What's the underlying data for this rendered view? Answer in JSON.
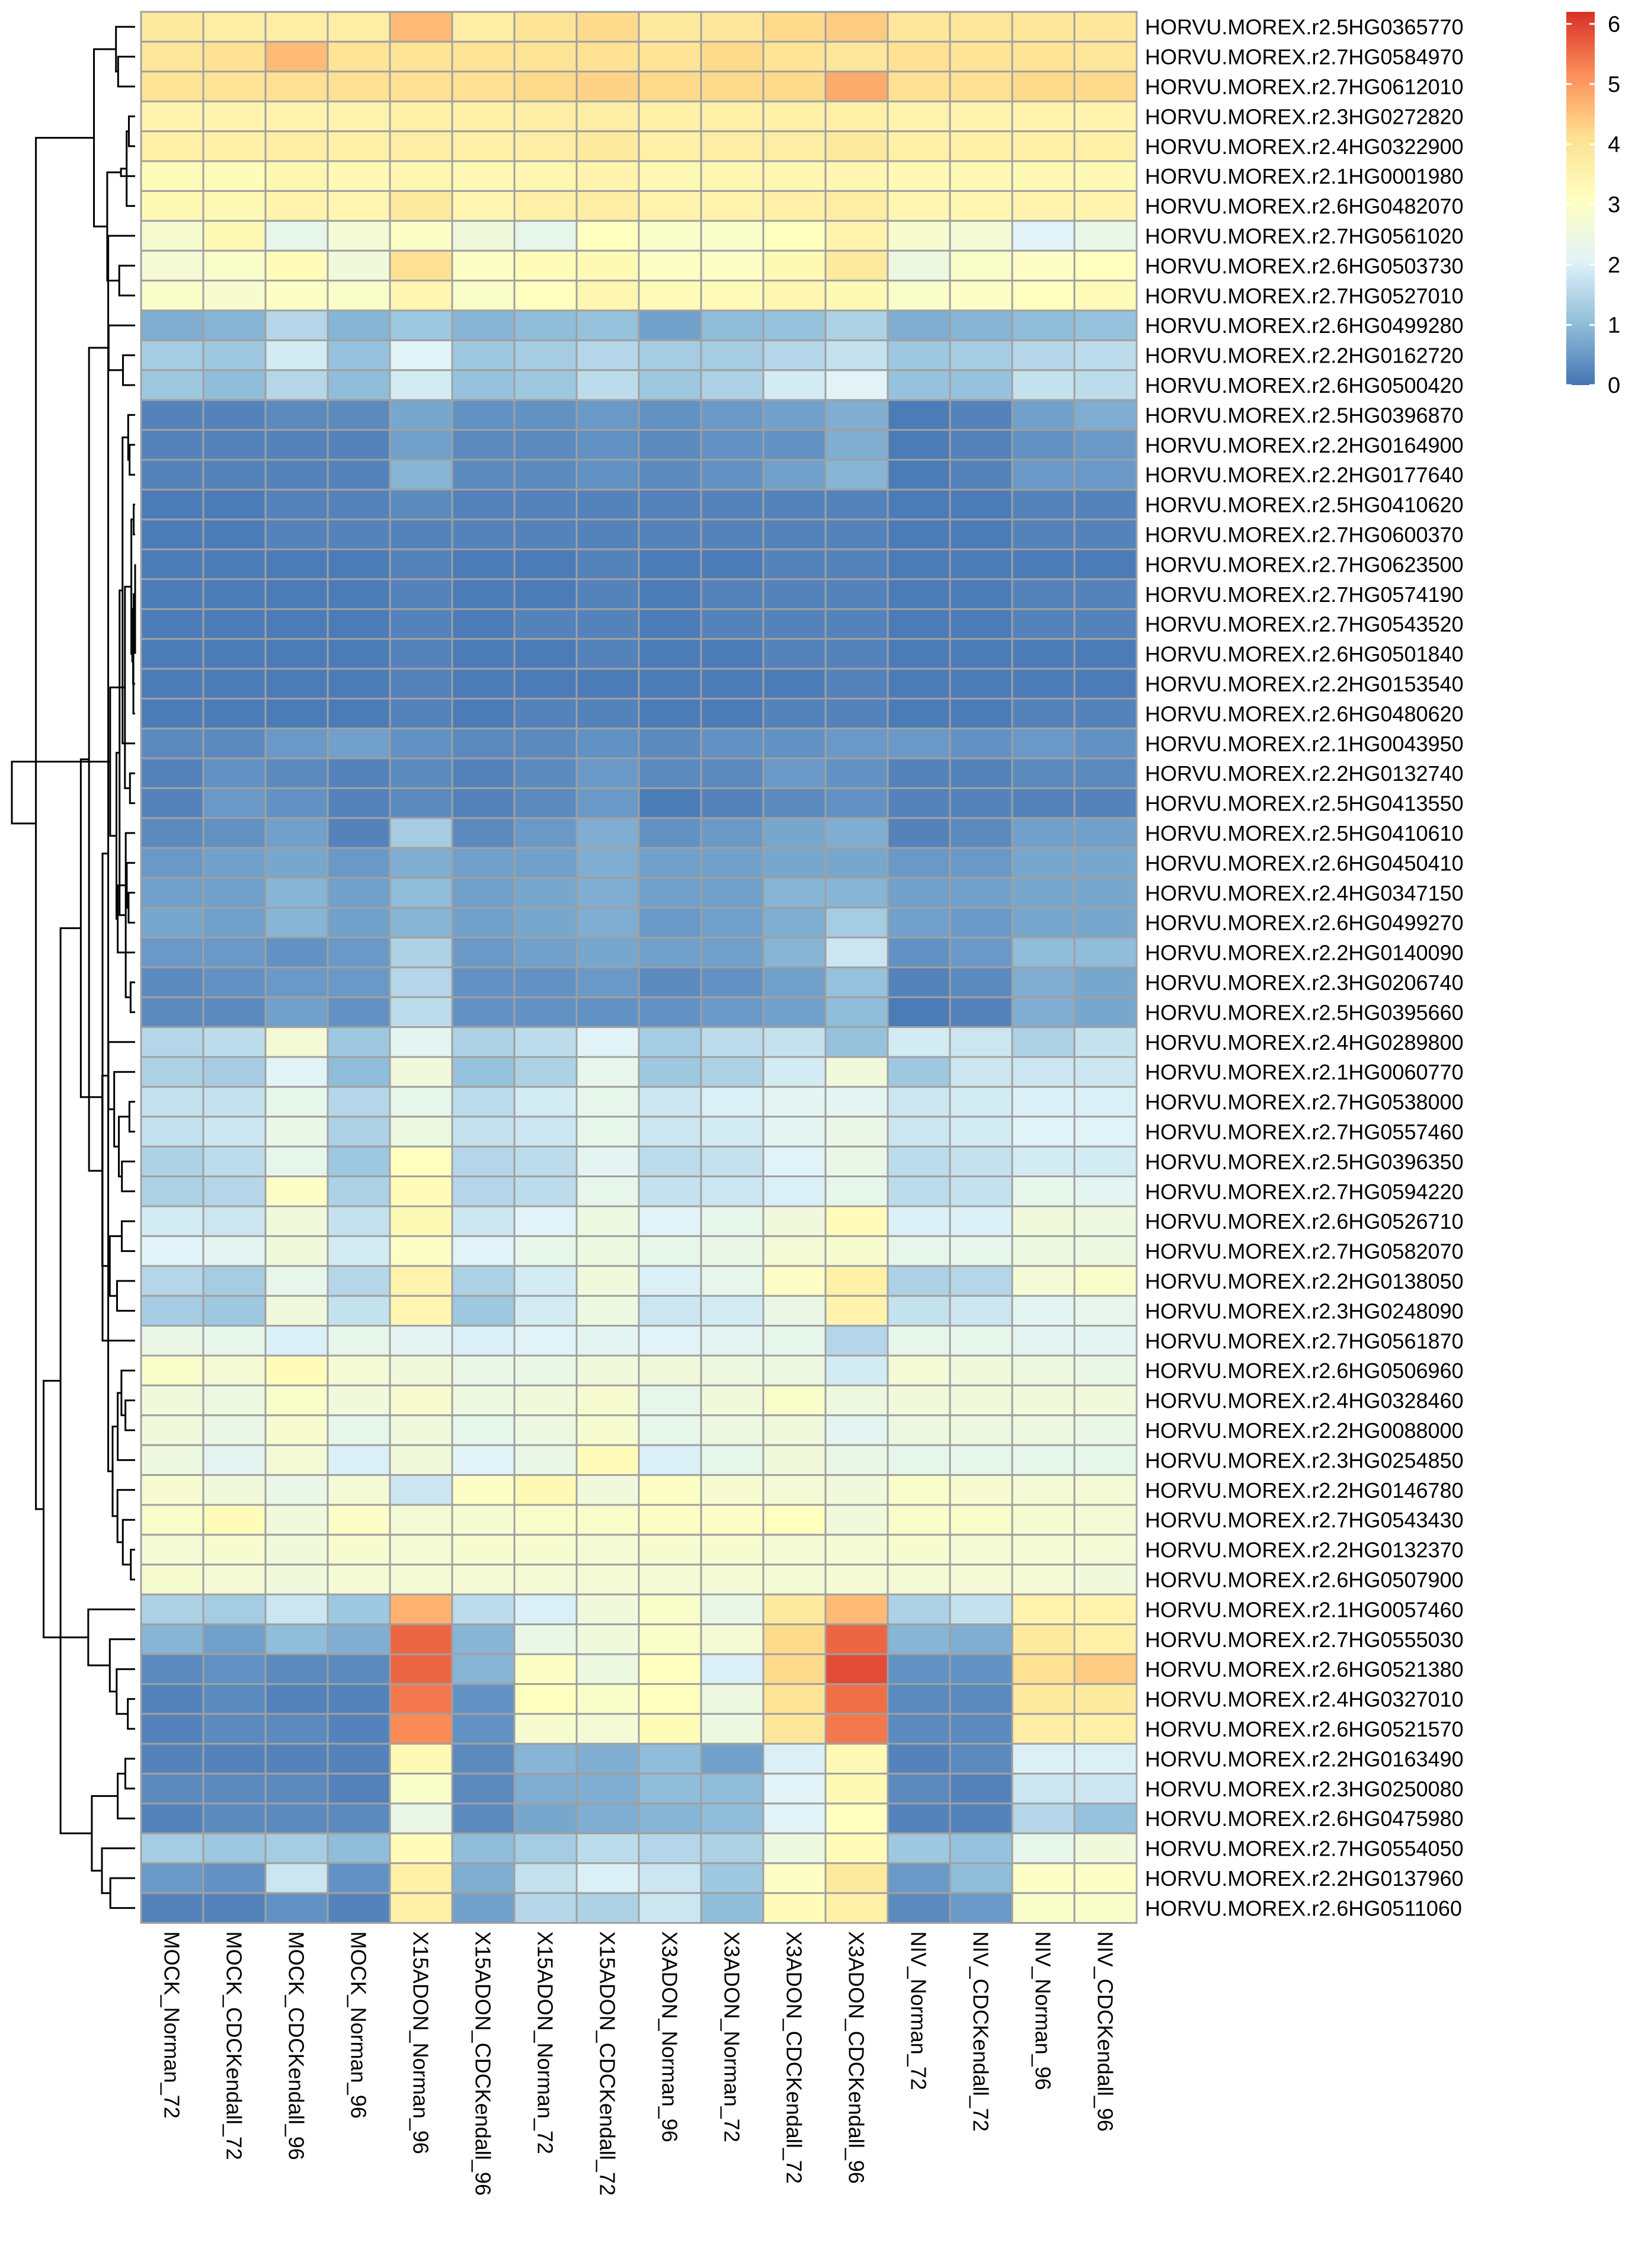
{
  "chart_data": {
    "type": "heatmap",
    "title": "",
    "columns": [
      "MOCK_Norman_72",
      "MOCK_CDCKendall_72",
      "MOCK_CDCKendall_96",
      "MOCK_Norman_96",
      "X15ADON_Norman_96",
      "X15ADON_CDCKendall_96",
      "X15ADON_Norman_72",
      "X15ADON_CDCKendall_72",
      "X3ADON_Norman_96",
      "X3ADON_Norman_72",
      "X3ADON_CDCKendall_72",
      "X3ADON_CDCKendall_96",
      "NIV_Norman_72",
      "NIV_CDCKendall_72",
      "NIV_Norman_96",
      "NIV_CDCKendall_96"
    ],
    "rows": [
      "HORVU.MOREX.r2.5HG0365770",
      "HORVU.MOREX.r2.7HG0584970",
      "HORVU.MOREX.r2.7HG0612010",
      "HORVU.MOREX.r2.3HG0272820",
      "HORVU.MOREX.r2.4HG0322900",
      "HORVU.MOREX.r2.1HG0001980",
      "HORVU.MOREX.r2.6HG0482070",
      "HORVU.MOREX.r2.7HG0561020",
      "HORVU.MOREX.r2.6HG0503730",
      "HORVU.MOREX.r2.7HG0527010",
      "HORVU.MOREX.r2.6HG0499280",
      "HORVU.MOREX.r2.2HG0162720",
      "HORVU.MOREX.r2.6HG0500420",
      "HORVU.MOREX.r2.5HG0396870",
      "HORVU.MOREX.r2.2HG0164900",
      "HORVU.MOREX.r2.2HG0177640",
      "HORVU.MOREX.r2.5HG0410620",
      "HORVU.MOREX.r2.7HG0600370",
      "HORVU.MOREX.r2.7HG0623500",
      "HORVU.MOREX.r2.7HG0574190",
      "HORVU.MOREX.r2.7HG0543520",
      "HORVU.MOREX.r2.6HG0501840",
      "HORVU.MOREX.r2.2HG0153540",
      "HORVU.MOREX.r2.6HG0480620",
      "HORVU.MOREX.r2.1HG0043950",
      "HORVU.MOREX.r2.2HG0132740",
      "HORVU.MOREX.r2.5HG0413550",
      "HORVU.MOREX.r2.5HG0410610",
      "HORVU.MOREX.r2.6HG0450410",
      "HORVU.MOREX.r2.4HG0347150",
      "HORVU.MOREX.r2.6HG0499270",
      "HORVU.MOREX.r2.2HG0140090",
      "HORVU.MOREX.r2.3HG0206740",
      "HORVU.MOREX.r2.5HG0395660",
      "HORVU.MOREX.r2.4HG0289800",
      "HORVU.MOREX.r2.1HG0060770",
      "HORVU.MOREX.r2.7HG0538000",
      "HORVU.MOREX.r2.7HG0557460",
      "HORVU.MOREX.r2.5HG0396350",
      "HORVU.MOREX.r2.7HG0594220",
      "HORVU.MOREX.r2.6HG0526710",
      "HORVU.MOREX.r2.7HG0582070",
      "HORVU.MOREX.r2.2HG0138050",
      "HORVU.MOREX.r2.3HG0248090",
      "HORVU.MOREX.r2.7HG0561870",
      "HORVU.MOREX.r2.6HG0506960",
      "HORVU.MOREX.r2.4HG0328460",
      "HORVU.MOREX.r2.2HG0088000",
      "HORVU.MOREX.r2.3HG0254850",
      "HORVU.MOREX.r2.2HG0146780",
      "HORVU.MOREX.r2.7HG0543430",
      "HORVU.MOREX.r2.2HG0132370",
      "HORVU.MOREX.r2.6HG0507900",
      "HORVU.MOREX.r2.1HG0057460",
      "HORVU.MOREX.r2.7HG0555030",
      "HORVU.MOREX.r2.6HG0521380",
      "HORVU.MOREX.r2.4HG0327010",
      "HORVU.MOREX.r2.6HG0521570",
      "HORVU.MOREX.r2.2HG0163490",
      "HORVU.MOREX.r2.3HG0250080",
      "HORVU.MOREX.r2.6HG0475980",
      "HORVU.MOREX.r2.7HG0554050",
      "HORVU.MOREX.r2.2HG0137960",
      "HORVU.MOREX.r2.6HG0511060"
    ],
    "values": [
      [
        3.8,
        3.7,
        3.7,
        3.7,
        4.6,
        3.7,
        4.0,
        4.2,
        3.8,
        3.9,
        4.2,
        4.4,
        3.9,
        3.9,
        3.9,
        3.9
      ],
      [
        3.9,
        4.1,
        4.6,
        4.0,
        4.0,
        4.0,
        4.0,
        4.1,
        4.0,
        4.2,
        4.0,
        3.9,
        4.1,
        4.0,
        4.0,
        3.9
      ],
      [
        4.0,
        4.0,
        4.1,
        4.1,
        4.1,
        4.1,
        4.2,
        4.3,
        4.2,
        4.2,
        4.2,
        4.8,
        4.1,
        4.1,
        4.2,
        4.2
      ],
      [
        3.5,
        3.5,
        3.5,
        3.5,
        3.6,
        3.6,
        3.7,
        3.7,
        3.6,
        3.6,
        3.6,
        3.6,
        3.5,
        3.5,
        3.5,
        3.5
      ],
      [
        3.6,
        3.6,
        3.7,
        3.6,
        3.7,
        3.6,
        3.7,
        3.8,
        3.6,
        3.7,
        3.7,
        3.8,
        3.6,
        3.6,
        3.6,
        3.6
      ],
      [
        3.2,
        3.2,
        3.4,
        3.3,
        3.4,
        3.3,
        3.4,
        3.5,
        3.3,
        3.4,
        3.4,
        3.4,
        3.3,
        3.3,
        3.3,
        3.3
      ],
      [
        3.3,
        3.3,
        3.5,
        3.4,
        3.8,
        3.4,
        3.6,
        3.7,
        3.5,
        3.5,
        3.6,
        3.7,
        3.4,
        3.4,
        3.5,
        3.5
      ],
      [
        2.8,
        3.3,
        2.3,
        2.7,
        3.0,
        2.6,
        2.3,
        3.1,
        2.9,
        2.9,
        3.1,
        3.5,
        2.8,
        2.7,
        2.1,
        2.4
      ],
      [
        2.7,
        2.9,
        3.2,
        2.6,
        4.1,
        3.0,
        3.2,
        3.3,
        3.0,
        3.0,
        3.3,
        3.8,
        2.5,
        2.9,
        3.0,
        3.1
      ],
      [
        2.9,
        2.8,
        3.0,
        2.9,
        3.4,
        2.9,
        3.1,
        3.4,
        3.2,
        3.2,
        3.4,
        3.3,
        2.9,
        3.0,
        3.1,
        3.2
      ],
      [
        0.8,
        0.9,
        1.5,
        0.9,
        1.2,
        0.9,
        1.0,
        1.1,
        0.6,
        1.0,
        1.1,
        1.4,
        0.8,
        0.9,
        1.0,
        1.1
      ],
      [
        1.3,
        1.2,
        1.9,
        1.1,
        2.1,
        1.2,
        1.3,
        1.5,
        1.3,
        1.3,
        1.5,
        1.7,
        1.2,
        1.3,
        1.5,
        1.6
      ],
      [
        1.2,
        1.0,
        1.5,
        1.0,
        1.9,
        1.1,
        1.2,
        1.6,
        1.2,
        1.4,
        1.9,
        2.1,
        1.1,
        1.1,
        1.7,
        1.6
      ],
      [
        0.2,
        0.2,
        0.3,
        0.3,
        0.7,
        0.4,
        0.4,
        0.5,
        0.4,
        0.5,
        0.6,
        0.8,
        0.1,
        0.2,
        0.6,
        0.8
      ],
      [
        0.2,
        0.2,
        0.2,
        0.2,
        0.6,
        0.3,
        0.3,
        0.4,
        0.3,
        0.4,
        0.4,
        0.8,
        0.1,
        0.2,
        0.4,
        0.5
      ],
      [
        0.2,
        0.2,
        0.2,
        0.2,
        0.9,
        0.3,
        0.3,
        0.4,
        0.3,
        0.4,
        0.6,
        0.9,
        0.1,
        0.2,
        0.5,
        0.5
      ],
      [
        0.1,
        0.1,
        0.2,
        0.2,
        0.3,
        0.2,
        0.2,
        0.2,
        0.2,
        0.2,
        0.2,
        0.2,
        0.1,
        0.1,
        0.2,
        0.2
      ],
      [
        0.1,
        0.1,
        0.2,
        0.2,
        0.2,
        0.2,
        0.2,
        0.2,
        0.2,
        0.2,
        0.2,
        0.2,
        0.1,
        0.1,
        0.2,
        0.2
      ],
      [
        0.1,
        0.1,
        0.1,
        0.1,
        0.2,
        0.1,
        0.1,
        0.2,
        0.1,
        0.1,
        0.2,
        0.2,
        0.1,
        0.1,
        0.1,
        0.1
      ],
      [
        0.1,
        0.1,
        0.1,
        0.1,
        0.2,
        0.1,
        0.1,
        0.2,
        0.1,
        0.2,
        0.2,
        0.2,
        0.1,
        0.1,
        0.2,
        0.2
      ],
      [
        0.1,
        0.1,
        0.1,
        0.1,
        0.2,
        0.1,
        0.2,
        0.2,
        0.1,
        0.2,
        0.2,
        0.2,
        0.1,
        0.1,
        0.2,
        0.2
      ],
      [
        0.1,
        0.1,
        0.1,
        0.1,
        0.2,
        0.1,
        0.1,
        0.2,
        0.1,
        0.1,
        0.2,
        0.2,
        0.1,
        0.1,
        0.1,
        0.1
      ],
      [
        0.1,
        0.1,
        0.1,
        0.1,
        0.2,
        0.1,
        0.1,
        0.1,
        0.1,
        0.1,
        0.1,
        0.2,
        0.1,
        0.1,
        0.1,
        0.1
      ],
      [
        0.1,
        0.1,
        0.1,
        0.1,
        0.2,
        0.1,
        0.2,
        0.2,
        0.1,
        0.1,
        0.2,
        0.2,
        0.1,
        0.1,
        0.2,
        0.2
      ],
      [
        0.3,
        0.3,
        0.5,
        0.6,
        0.4,
        0.3,
        0.3,
        0.4,
        0.3,
        0.4,
        0.4,
        0.5,
        0.5,
        0.4,
        0.5,
        0.4
      ],
      [
        0.2,
        0.4,
        0.3,
        0.2,
        0.3,
        0.2,
        0.3,
        0.5,
        0.3,
        0.3,
        0.5,
        0.4,
        0.2,
        0.2,
        0.3,
        0.3
      ],
      [
        0.2,
        0.5,
        0.4,
        0.2,
        0.3,
        0.2,
        0.3,
        0.5,
        0.1,
        0.2,
        0.3,
        0.4,
        0.2,
        0.2,
        0.2,
        0.2
      ],
      [
        0.3,
        0.4,
        0.6,
        0.2,
        1.3,
        0.3,
        0.5,
        0.8,
        0.4,
        0.5,
        0.7,
        0.8,
        0.2,
        0.3,
        0.6,
        0.6
      ],
      [
        0.5,
        0.6,
        0.7,
        0.5,
        0.8,
        0.6,
        0.6,
        0.8,
        0.6,
        0.6,
        0.7,
        0.7,
        0.5,
        0.5,
        0.7,
        0.7
      ],
      [
        0.6,
        0.6,
        0.9,
        0.6,
        1.0,
        0.6,
        0.7,
        0.8,
        0.6,
        0.6,
        0.9,
        0.9,
        0.6,
        0.6,
        0.7,
        0.7
      ],
      [
        0.7,
        0.6,
        0.9,
        0.6,
        0.9,
        0.6,
        0.7,
        0.8,
        0.5,
        0.6,
        0.8,
        1.3,
        0.6,
        0.5,
        0.7,
        0.7
      ],
      [
        0.5,
        0.5,
        0.4,
        0.5,
        1.4,
        0.5,
        0.6,
        0.7,
        0.6,
        0.6,
        0.9,
        1.8,
        0.4,
        0.5,
        1.0,
        1.0
      ],
      [
        0.3,
        0.4,
        0.5,
        0.5,
        1.5,
        0.4,
        0.4,
        0.5,
        0.3,
        0.4,
        0.6,
        1.1,
        0.2,
        0.3,
        0.8,
        0.7
      ],
      [
        0.3,
        0.3,
        0.6,
        0.4,
        1.6,
        0.4,
        0.4,
        0.4,
        0.4,
        0.5,
        0.6,
        1.0,
        0.1,
        0.2,
        0.8,
        0.7
      ],
      [
        1.5,
        1.6,
        2.7,
        1.2,
        2.2,
        1.4,
        1.6,
        2.1,
        1.3,
        1.6,
        1.7,
        1.1,
        1.9,
        1.8,
        1.4,
        1.7
      ],
      [
        1.4,
        1.3,
        2.1,
        1.0,
        2.6,
        1.1,
        1.4,
        2.3,
        1.2,
        1.4,
        1.9,
        2.6,
        1.2,
        1.8,
        1.8,
        1.8
      ],
      [
        1.7,
        1.7,
        2.3,
        1.5,
        2.3,
        1.6,
        1.9,
        2.3,
        1.8,
        2.0,
        2.2,
        2.2,
        1.8,
        1.9,
        2.0,
        2.0
      ],
      [
        1.7,
        1.8,
        2.4,
        1.4,
        2.5,
        1.7,
        1.8,
        2.3,
        1.8,
        1.9,
        2.2,
        2.4,
        1.8,
        1.9,
        2.1,
        2.1
      ],
      [
        1.4,
        1.6,
        2.3,
        1.2,
        3.1,
        1.5,
        1.6,
        2.2,
        1.6,
        1.7,
        2.1,
        2.4,
        1.6,
        1.7,
        1.9,
        1.9
      ],
      [
        1.4,
        1.5,
        3.0,
        1.4,
        3.2,
        1.5,
        1.6,
        2.3,
        1.7,
        1.8,
        2.0,
        2.3,
        1.6,
        1.7,
        2.3,
        2.2
      ],
      [
        1.9,
        1.8,
        2.6,
        1.7,
        3.3,
        1.8,
        2.1,
        2.5,
        2.1,
        2.3,
        2.6,
        3.2,
        2.0,
        2.0,
        2.6,
        2.5
      ],
      [
        2.1,
        2.2,
        2.6,
        1.9,
        3.0,
        2.1,
        2.3,
        2.5,
        2.3,
        2.4,
        2.7,
        2.8,
        2.3,
        2.3,
        2.5,
        2.5
      ],
      [
        1.5,
        1.3,
        2.3,
        1.5,
        3.5,
        1.4,
        1.9,
        2.6,
        2.0,
        2.3,
        3.0,
        3.6,
        1.4,
        1.5,
        2.7,
        2.9
      ],
      [
        1.3,
        1.2,
        2.6,
        1.7,
        3.4,
        1.2,
        1.9,
        2.5,
        1.8,
        1.9,
        2.4,
        3.5,
        1.7,
        1.8,
        2.2,
        2.3
      ],
      [
        2.4,
        2.3,
        2.0,
        2.3,
        2.2,
        2.0,
        2.1,
        2.2,
        2.1,
        2.2,
        2.3,
        1.5,
        2.3,
        2.3,
        2.2,
        2.2
      ],
      [
        2.9,
        2.7,
        3.2,
        2.7,
        2.6,
        2.4,
        2.4,
        2.6,
        2.6,
        2.5,
        2.5,
        1.9,
        2.7,
        2.6,
        2.5,
        2.4
      ],
      [
        2.6,
        2.5,
        2.9,
        2.6,
        2.8,
        2.5,
        2.6,
        2.8,
        2.3,
        2.6,
        2.9,
        2.5,
        2.6,
        2.6,
        2.6,
        2.6
      ],
      [
        2.6,
        2.4,
        2.8,
        2.3,
        2.6,
        2.3,
        2.5,
        2.8,
        2.3,
        2.5,
        2.6,
        2.2,
        2.5,
        2.5,
        2.5,
        2.4
      ],
      [
        2.5,
        2.2,
        2.7,
        2.0,
        2.6,
        2.1,
        2.4,
        3.2,
        2.0,
        2.3,
        2.6,
        2.4,
        2.3,
        2.3,
        2.3,
        2.3
      ],
      [
        2.8,
        2.6,
        2.4,
        2.7,
        1.8,
        3.0,
        3.3,
        2.6,
        3.0,
        2.8,
        2.7,
        2.6,
        2.9,
        2.8,
        2.7,
        2.7
      ],
      [
        2.9,
        3.2,
        2.6,
        3.0,
        2.7,
        2.8,
        2.9,
        2.9,
        3.0,
        3.0,
        3.1,
        2.6,
        2.9,
        2.9,
        2.8,
        2.7
      ],
      [
        2.7,
        2.8,
        2.6,
        2.8,
        2.7,
        2.8,
        2.8,
        2.7,
        2.8,
        2.8,
        2.7,
        2.7,
        2.8,
        2.7,
        2.7,
        2.7
      ],
      [
        2.8,
        2.7,
        2.6,
        2.7,
        2.7,
        2.7,
        2.7,
        2.7,
        2.7,
        2.7,
        2.7,
        2.7,
        2.7,
        2.7,
        2.7,
        2.6
      ],
      [
        1.4,
        1.3,
        1.8,
        1.2,
        4.7,
        1.6,
        2.0,
        2.6,
        2.9,
        2.4,
        3.8,
        4.6,
        1.4,
        1.7,
        3.5,
        3.5
      ],
      [
        0.9,
        0.6,
        1.0,
        0.8,
        5.6,
        0.9,
        2.4,
        2.6,
        2.9,
        2.7,
        4.2,
        5.6,
        0.9,
        0.8,
        3.8,
        3.6
      ],
      [
        0.3,
        0.4,
        0.3,
        0.3,
        5.6,
        0.9,
        3.0,
        2.5,
        3.1,
        2.0,
        4.2,
        5.9,
        0.4,
        0.4,
        4.1,
        4.4
      ],
      [
        0.2,
        0.3,
        0.2,
        0.2,
        5.4,
        0.4,
        3.1,
        2.9,
        3.1,
        2.5,
        4.0,
        5.5,
        0.3,
        0.3,
        3.8,
        3.8
      ],
      [
        0.2,
        0.3,
        0.3,
        0.2,
        5.2,
        0.4,
        2.8,
        2.7,
        3.2,
        2.5,
        3.9,
        5.4,
        0.3,
        0.3,
        3.7,
        3.6
      ],
      [
        0.2,
        0.2,
        0.2,
        0.2,
        3.3,
        0.3,
        0.9,
        0.8,
        1.0,
        0.6,
        2.0,
        3.3,
        0.2,
        0.3,
        2.0,
        2.0
      ],
      [
        0.3,
        0.3,
        0.3,
        0.2,
        2.9,
        0.3,
        0.8,
        0.8,
        1.0,
        1.0,
        2.1,
        3.3,
        0.3,
        0.2,
        1.8,
        1.8
      ],
      [
        0.2,
        0.3,
        0.3,
        0.3,
        2.4,
        0.3,
        0.7,
        0.8,
        0.9,
        1.0,
        2.1,
        3.1,
        0.2,
        0.2,
        1.5,
        1.1
      ],
      [
        1.3,
        1.2,
        1.3,
        1.0,
        3.2,
        1.0,
        1.3,
        1.6,
        1.5,
        1.4,
        2.5,
        3.2,
        1.2,
        1.1,
        2.3,
        2.6
      ],
      [
        0.5,
        0.4,
        1.8,
        0.4,
        3.6,
        0.8,
        1.7,
        2.0,
        1.8,
        1.2,
        3.0,
        3.8,
        0.5,
        1.0,
        3.0,
        3.0
      ],
      [
        0.2,
        0.2,
        0.4,
        0.2,
        3.6,
        0.6,
        1.5,
        1.4,
        1.8,
        1.0,
        3.2,
        3.6,
        0.3,
        0.5,
        2.9,
        2.9
      ]
    ],
    "colorbar": {
      "min": 0,
      "max": 6.2,
      "ticks": [
        0,
        1,
        2,
        3,
        4,
        5,
        6
      ],
      "colors": [
        "#4575B4",
        "#91BFDB",
        "#E0F3F8",
        "#FFFFBF",
        "#FEE090",
        "#FC8D59",
        "#D73027"
      ]
    },
    "cell_border_color": "#A0A0A0",
    "row_dendrogram": true,
    "column_dendrogram": false,
    "legend_placement": "top-right"
  }
}
